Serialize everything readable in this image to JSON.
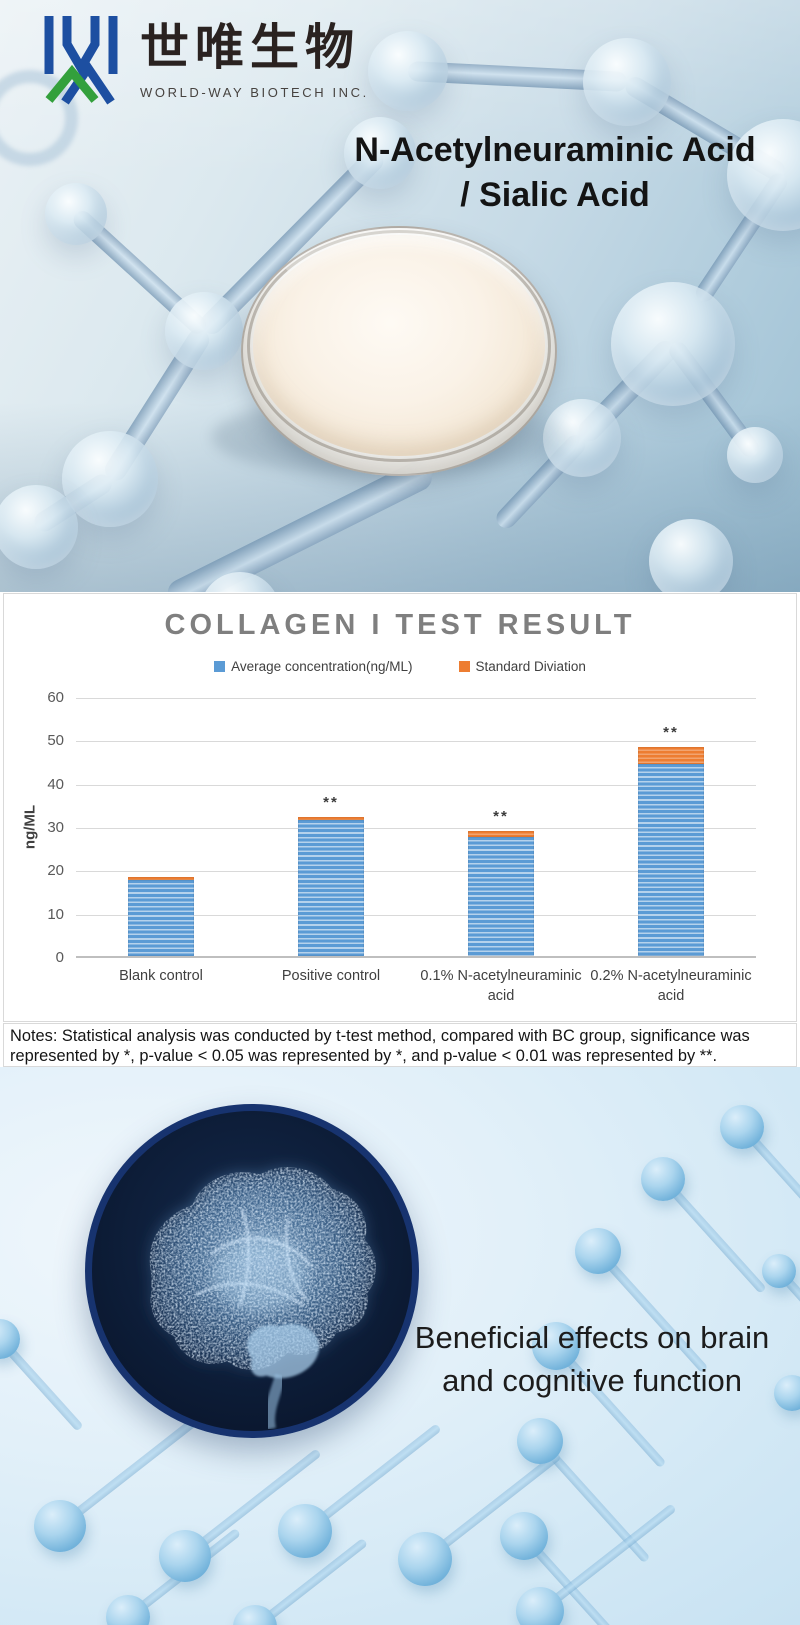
{
  "brand": {
    "logo_cn": "世唯生物",
    "logo_en": "WORLD-WAY BIOTECH INC.",
    "logo_blue": "#1d4fa1",
    "logo_green": "#33a03c"
  },
  "hero": {
    "title_line1": "N-Acetylneuraminic Acid",
    "title_line2": "/ Sialic Acid"
  },
  "chart_data": {
    "type": "bar",
    "stacked": true,
    "title": "COLLAGEN I TEST RESULT",
    "categories": [
      "Blank control",
      "Positive control",
      "0.1% N-acetylneuraminic acid",
      "0.2% N-acetylneuraminic acid"
    ],
    "series": [
      {
        "name": "Average concentration(ng/ML)",
        "color": "#5B9BD5",
        "values": [
          17.5,
          31.5,
          27.4,
          44.4
        ]
      },
      {
        "name": "Standard Diviation",
        "color": "#ED7D31",
        "values": [
          0.8,
          0.5,
          1.4,
          3.9
        ]
      }
    ],
    "significance": [
      "",
      "**",
      "**",
      "**"
    ],
    "ylabel": "ng/ML",
    "ylim": [
      0,
      60
    ],
    "ytick_step": 10,
    "grid": true,
    "legend_position": "top"
  },
  "notes": {
    "line1": "Notes: Statistical analysis was conducted by t-test method, compared with BC group, significance was",
    "line2": "represented by *, p-value < 0.05 was represented by *, and p-value < 0.01 was represented by **."
  },
  "bottom": {
    "caption_line1": "Beneficial effects on brain",
    "caption_line2": "and cognitive function"
  }
}
